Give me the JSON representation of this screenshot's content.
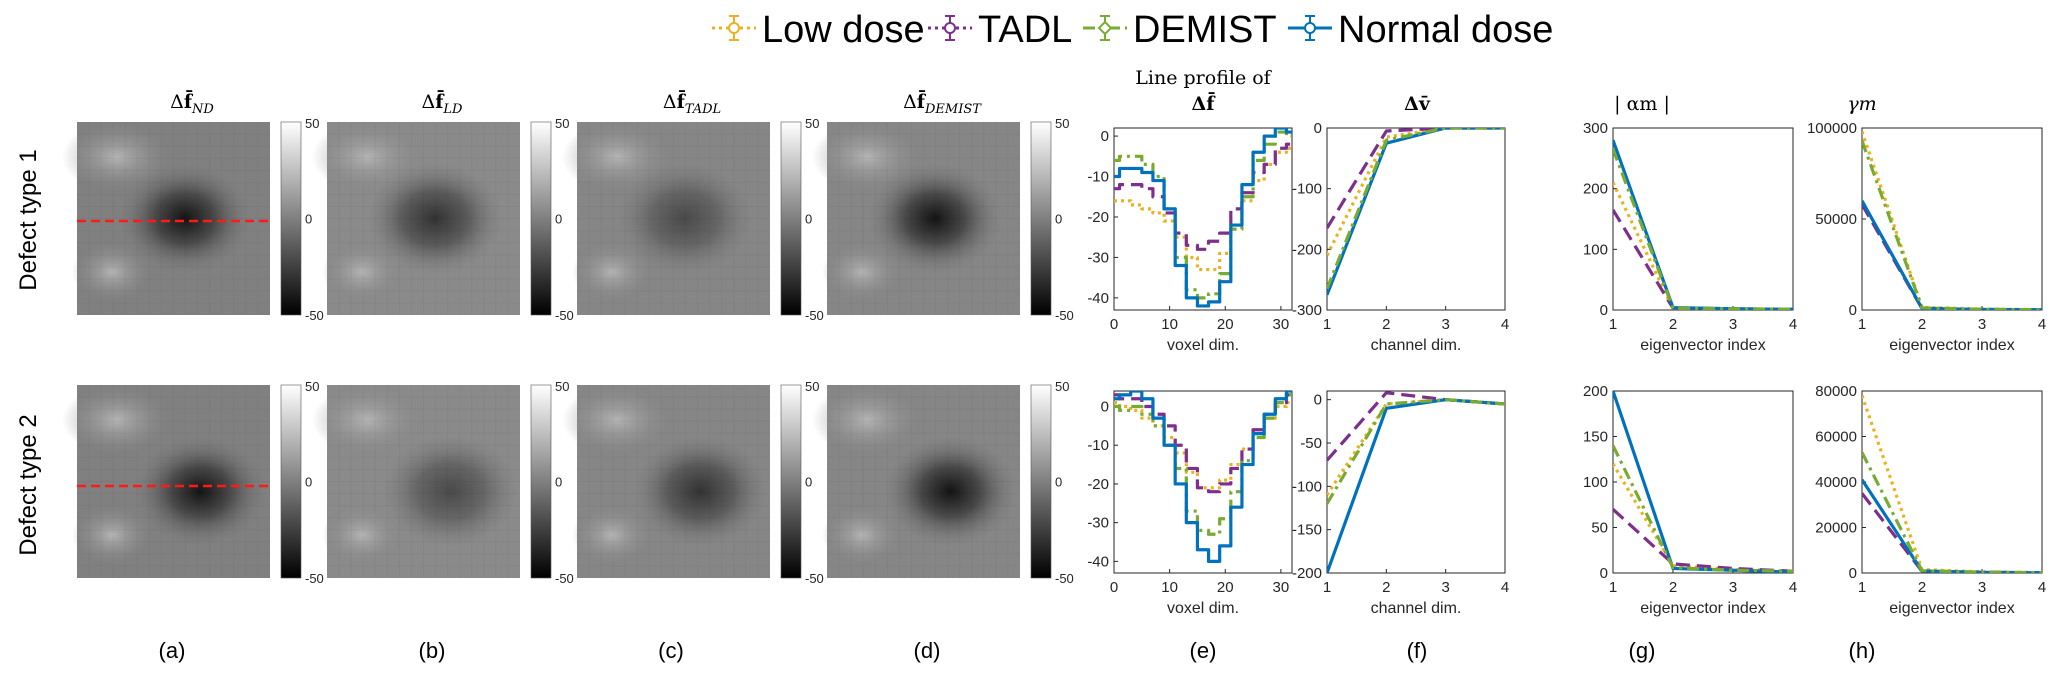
{
  "legend": {
    "entries": [
      {
        "label": "Low dose",
        "color": "#EDB120",
        "dash": "dot",
        "marker": "circle"
      },
      {
        "label": "TADL",
        "color": "#7E2F8E",
        "dash": "dot",
        "marker": "circle"
      },
      {
        "label": "DEMIST",
        "color": "#77AC30",
        "dash": "dashdot",
        "marker": "diamond"
      },
      {
        "label": "Normal dose",
        "color": "#0072BD",
        "dash": "solid",
        "marker": "circle"
      }
    ]
  },
  "row_labels": [
    "Defect type 1",
    "Defect type 2"
  ],
  "subfigure_labels": [
    "(a)",
    "(b)",
    "(c)",
    "(d)",
    "(e)",
    "(f)",
    "(g)",
    "(h)"
  ],
  "image_titles": [
    {
      "base": "Δ",
      "sym": "f̄̄",
      "sub": "ND"
    },
    {
      "base": "Δ",
      "sym": "f̄̄",
      "sub": "LD"
    },
    {
      "base": "Δ",
      "sym": "f̄̄",
      "sub": "TADL"
    },
    {
      "base": "Δ",
      "sym": "f̄̄",
      "sub": "DEMIST"
    }
  ],
  "colorbar": {
    "max_label": "50",
    "mid_label": "0",
    "min_label": "-50"
  },
  "plot_titles": {
    "line_profile_line1": "Line profile of",
    "line_profile_line2": "Δf̄̄",
    "channel": "Δv̄",
    "alpha": "| αm |",
    "gamma": "γm"
  },
  "chart_data": [
    {
      "type": "line",
      "panel": "(e)",
      "row": 1,
      "xlabel": "voxel dim.",
      "xlim": [
        0,
        32
      ],
      "ylim": [
        -43,
        2
      ],
      "xticks": [
        0,
        10,
        20,
        30
      ],
      "yticks": [
        0,
        -10,
        -20,
        -30,
        -40
      ],
      "x": [
        0,
        2,
        4,
        6,
        8,
        10,
        12,
        14,
        16,
        18,
        20,
        22,
        24,
        26,
        28,
        30,
        32
      ],
      "series": [
        {
          "name": "Low dose",
          "values": [
            -16,
            -16,
            -17,
            -18,
            -19,
            -21,
            -25,
            -30,
            -33,
            -33,
            -29,
            -22,
            -16,
            -11,
            -7,
            -4,
            -3
          ]
        },
        {
          "name": "TADL",
          "values": [
            -13,
            -12,
            -12,
            -13,
            -15,
            -19,
            -24,
            -27,
            -28,
            -26,
            -24,
            -18,
            -14,
            -9,
            -7,
            -3,
            -2
          ]
        },
        {
          "name": "DEMIST",
          "values": [
            -6,
            -5,
            -5,
            -7,
            -10,
            -18,
            -30,
            -38,
            -40,
            -39,
            -34,
            -23,
            -15,
            -6,
            -2,
            1,
            0
          ]
        },
        {
          "name": "Normal dose",
          "values": [
            -10,
            -8,
            -8,
            -9,
            -11,
            -18,
            -32,
            -40,
            -42,
            -41,
            -36,
            -22,
            -12,
            -4,
            0,
            2,
            1
          ]
        }
      ]
    },
    {
      "type": "line",
      "panel": "(e)",
      "row": 2,
      "xlabel": "voxel dim.",
      "xlim": [
        0,
        32
      ],
      "ylim": [
        -43,
        4
      ],
      "xticks": [
        0,
        10,
        20,
        30
      ],
      "yticks": [
        0,
        -10,
        -20,
        -30,
        -40
      ],
      "x": [
        0,
        2,
        4,
        6,
        8,
        10,
        12,
        14,
        16,
        18,
        20,
        22,
        24,
        26,
        28,
        30,
        32
      ],
      "series": [
        {
          "name": "Low dose",
          "values": [
            1,
            0,
            -1,
            -3,
            -5,
            -8,
            -12,
            -17,
            -21,
            -21,
            -19,
            -15,
            -11,
            -7,
            -3,
            0,
            1
          ]
        },
        {
          "name": "TADL",
          "values": [
            3,
            2,
            2,
            0,
            -2,
            -5,
            -10,
            -16,
            -21,
            -22,
            -20,
            -16,
            -11,
            -6,
            -2,
            1,
            3
          ]
        },
        {
          "name": "DEMIST",
          "values": [
            0,
            -1,
            0,
            -2,
            -5,
            -10,
            -16,
            -27,
            -32,
            -33,
            -29,
            -22,
            -14,
            -8,
            -3,
            1,
            3
          ]
        },
        {
          "name": "Normal dose",
          "values": [
            2,
            3,
            4,
            2,
            -3,
            -10,
            -20,
            -30,
            -37,
            -40,
            -36,
            -26,
            -15,
            -7,
            -2,
            2,
            4
          ]
        }
      ]
    },
    {
      "type": "line",
      "panel": "(f)",
      "row": 1,
      "xlabel": "channel dim.",
      "xlim": [
        1,
        4
      ],
      "ylim": [
        -300,
        0
      ],
      "xticks": [
        1,
        2,
        3,
        4
      ],
      "yticks": [
        0,
        -100,
        -200,
        -300
      ],
      "x": [
        1,
        2,
        3,
        4
      ],
      "series": [
        {
          "name": "Low dose",
          "values": [
            -210,
            -15,
            0,
            0
          ]
        },
        {
          "name": "TADL",
          "values": [
            -165,
            -5,
            0,
            0
          ]
        },
        {
          "name": "DEMIST",
          "values": [
            -265,
            -20,
            0,
            0
          ]
        },
        {
          "name": "Normal dose",
          "values": [
            -275,
            -25,
            0,
            0
          ]
        }
      ]
    },
    {
      "type": "line",
      "panel": "(f)",
      "row": 2,
      "xlabel": "channel dim.",
      "xlim": [
        1,
        4
      ],
      "ylim": [
        -200,
        10
      ],
      "xticks": [
        1,
        2,
        3,
        4
      ],
      "yticks": [
        0,
        -50,
        -100,
        -150,
        -200
      ],
      "x": [
        1,
        2,
        3,
        4
      ],
      "series": [
        {
          "name": "Low dose",
          "values": [
            -110,
            -5,
            0,
            -5
          ]
        },
        {
          "name": "TADL",
          "values": [
            -70,
            8,
            0,
            -5
          ]
        },
        {
          "name": "DEMIST",
          "values": [
            -120,
            -5,
            0,
            -5
          ]
        },
        {
          "name": "Normal dose",
          "values": [
            -200,
            -10,
            0,
            -5
          ]
        }
      ]
    },
    {
      "type": "line",
      "panel": "(g)",
      "row": 1,
      "xlabel": "eigenvector index",
      "xlim": [
        1,
        4
      ],
      "ylim": [
        0,
        300
      ],
      "xticks": [
        1,
        2,
        3,
        4
      ],
      "yticks": [
        0,
        100,
        200,
        300
      ],
      "x": [
        1,
        2,
        3,
        4
      ],
      "series": [
        {
          "name": "Low dose",
          "values": [
            210,
            2,
            1,
            0
          ]
        },
        {
          "name": "TADL",
          "values": [
            165,
            3,
            2,
            1
          ]
        },
        {
          "name": "DEMIST",
          "values": [
            265,
            3,
            2,
            1
          ]
        },
        {
          "name": "Normal dose",
          "values": [
            280,
            4,
            2,
            1
          ]
        }
      ]
    },
    {
      "type": "line",
      "panel": "(g)",
      "row": 2,
      "xlabel": "eigenvector index",
      "xlim": [
        1,
        4
      ],
      "ylim": [
        0,
        200
      ],
      "xticks": [
        1,
        2,
        3,
        4
      ],
      "yticks": [
        0,
        50,
        100,
        150,
        200
      ],
      "x": [
        1,
        2,
        3,
        4
      ],
      "series": [
        {
          "name": "Low dose",
          "values": [
            120,
            8,
            4,
            2
          ]
        },
        {
          "name": "TADL",
          "values": [
            70,
            10,
            5,
            2
          ]
        },
        {
          "name": "DEMIST",
          "values": [
            140,
            6,
            3,
            2
          ]
        },
        {
          "name": "Normal dose",
          "values": [
            200,
            5,
            3,
            1
          ]
        }
      ]
    },
    {
      "type": "line",
      "panel": "(h)",
      "row": 1,
      "xlabel": "eigenvector index",
      "xlim": [
        1,
        4
      ],
      "ylim": [
        0,
        100000
      ],
      "xticks": [
        1,
        2,
        3,
        4
      ],
      "yticks": [
        0,
        50000,
        100000
      ],
      "x": [
        1,
        2,
        3,
        4
      ],
      "series": [
        {
          "name": "Low dose",
          "values": [
            98000,
            1500,
            500,
            200
          ]
        },
        {
          "name": "TADL",
          "values": [
            58000,
            800,
            300,
            100
          ]
        },
        {
          "name": "DEMIST",
          "values": [
            93000,
            1200,
            400,
            150
          ]
        },
        {
          "name": "Normal dose",
          "values": [
            60000,
            900,
            300,
            100
          ]
        }
      ]
    },
    {
      "type": "line",
      "panel": "(h)",
      "row": 2,
      "xlabel": "eigenvector index",
      "xlim": [
        1,
        4
      ],
      "ylim": [
        0,
        80000
      ],
      "xticks": [
        1,
        2,
        3,
        4
      ],
      "yticks": [
        0,
        20000,
        40000,
        60000,
        80000
      ],
      "x": [
        1,
        2,
        3,
        4
      ],
      "series": [
        {
          "name": "Low dose",
          "values": [
            78000,
            1500,
            500,
            200
          ]
        },
        {
          "name": "TADL",
          "values": [
            35000,
            800,
            300,
            100
          ]
        },
        {
          "name": "DEMIST",
          "values": [
            53000,
            1000,
            400,
            150
          ]
        },
        {
          "name": "Normal dose",
          "values": [
            41000,
            900,
            300,
            100
          ]
        }
      ]
    }
  ]
}
